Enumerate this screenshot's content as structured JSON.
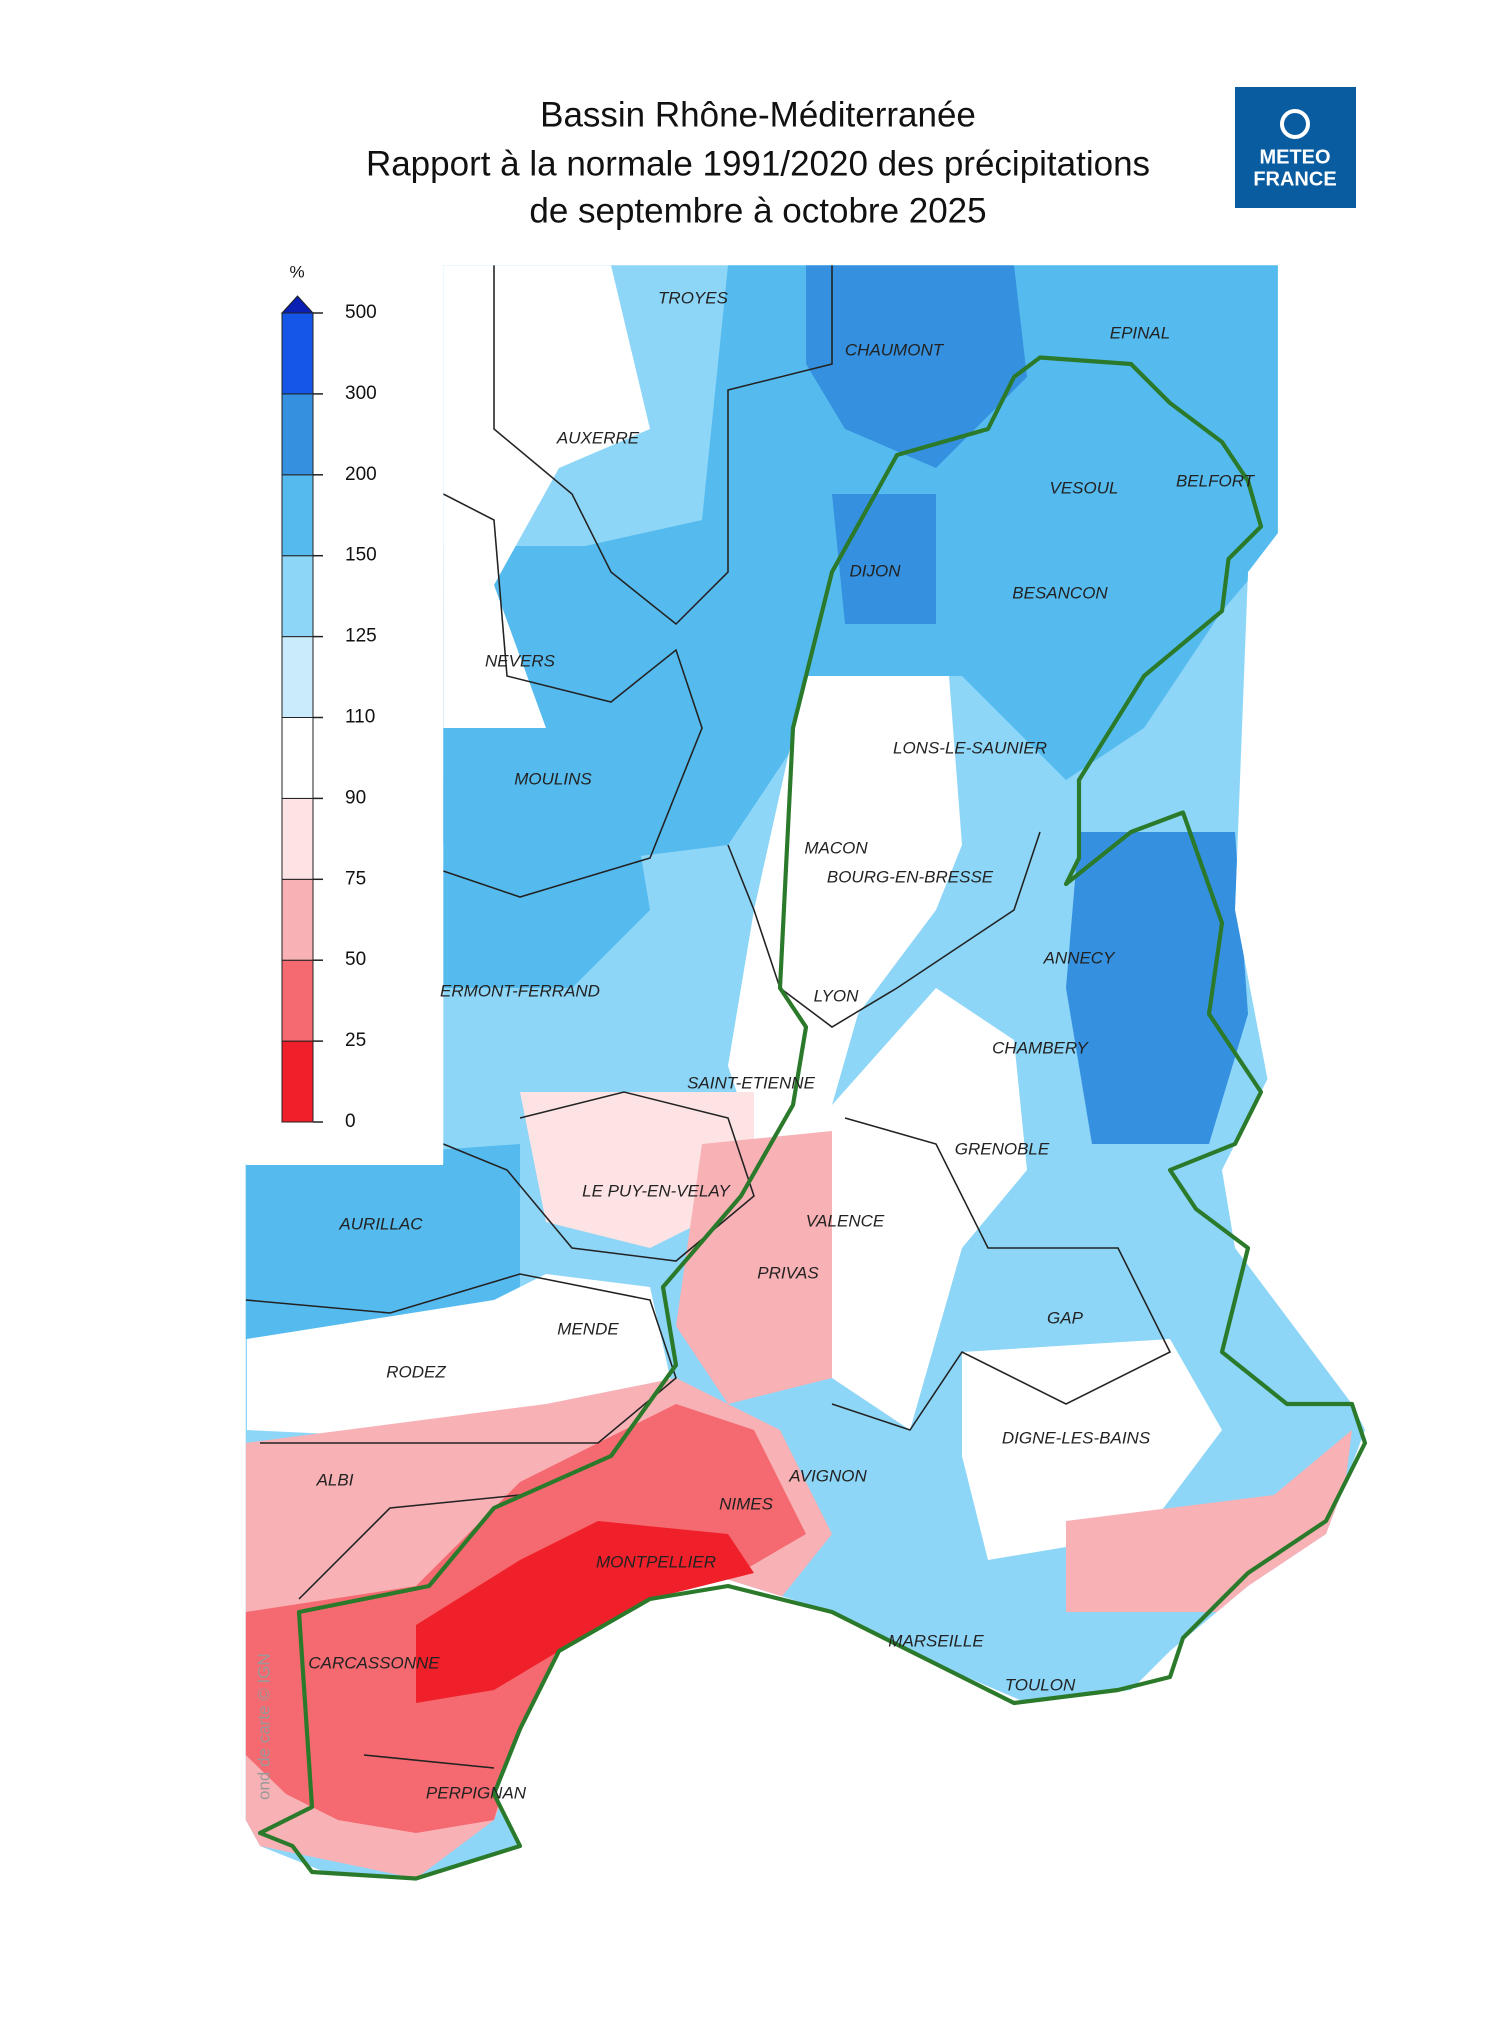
{
  "title": [
    "Bassin Rhône-Méditerranée",
    "Rapport à la normale 1991/2020 des précipitations",
    "de septembre à octobre 2025"
  ],
  "logo": {
    "lines": [
      "METEO",
      "FRANCE"
    ]
  },
  "legend": {
    "unit": "%",
    "ticks": [
      0,
      25,
      50,
      75,
      90,
      110,
      125,
      150,
      200,
      300,
      500
    ],
    "colors": [
      "#f0202a",
      "#f46a70",
      "#f8b1b5",
      "#fde3e4",
      "#ffffff",
      "#c9ebfb",
      "#8ed6f7",
      "#55bbef",
      "#3590e0",
      "#1556e8"
    ],
    "over_color": "#0a1fb3"
  },
  "cities": [
    "TROYES",
    "CHAUMONT",
    "EPINAL",
    "AUXERRE",
    "VESOUL",
    "BELFORT",
    "DIJON",
    "BESANCON",
    "NEVERS",
    "LONS-LE-SAUNIER",
    "MOULINS",
    "MACON",
    "BOURG-EN-BRESSE",
    "ANNECY",
    "ERMONT-FERRAND",
    "LYON",
    "CHAMBERY",
    "SAINT-ETIENNE",
    "GRENOBLE",
    "LE PUY-EN-VELAY",
    "AURILLAC",
    "VALENCE",
    "PRIVAS",
    "GAP",
    "MENDE",
    "RODEZ",
    "DIGNE-LES-BAINS",
    "ALBI",
    "AVIGNON",
    "NIMES",
    "MONTPELLIER",
    "MARSEILLE",
    "TOULON",
    "CARCASSONNE",
    "PERPIGNAN"
  ],
  "credit": "ond de carte © IGN"
}
